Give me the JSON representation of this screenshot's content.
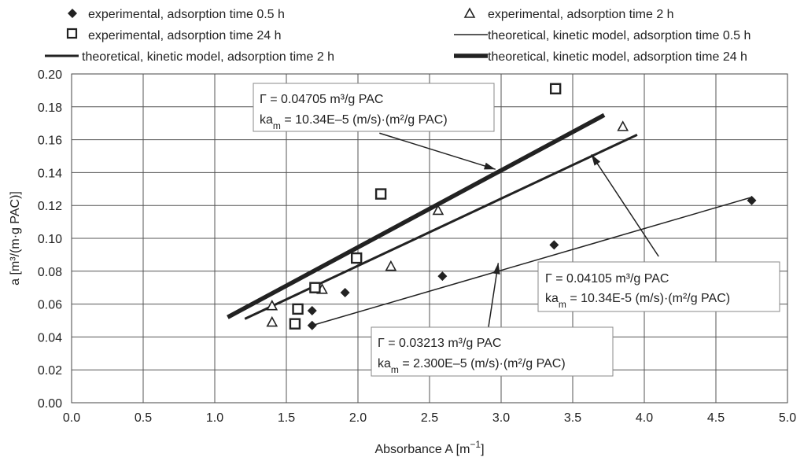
{
  "chart_data": {
    "type": "scatter",
    "xlabel": "Absorbance A [m",
    "xlabel_sup": "−1",
    "xlabel_end": "]",
    "ylabel": "a [m³/(m·g PAC)]",
    "xlim": [
      0.0,
      5.0
    ],
    "ylim": [
      0.0,
      0.2
    ],
    "x_ticks": [
      "0.0",
      "0.5",
      "1.0",
      "1.5",
      "2.0",
      "2.5",
      "3.0",
      "3.5",
      "4.0",
      "4.5",
      "5.0"
    ],
    "y_ticks": [
      "0.00",
      "0.02",
      "0.04",
      "0.06",
      "0.08",
      "0.10",
      "0.12",
      "0.14",
      "0.16",
      "0.18",
      "0.20"
    ],
    "grid": true,
    "legend_position": "top",
    "series": [
      {
        "name": "experimental, adsorption time 0.5 h",
        "kind": "points",
        "marker": "diamond",
        "points": [
          [
            1.68,
            0.047
          ],
          [
            1.68,
            0.056
          ],
          [
            1.91,
            0.067
          ],
          [
            2.59,
            0.077
          ],
          [
            3.37,
            0.096
          ],
          [
            4.75,
            0.123
          ]
        ]
      },
      {
        "name": "experimental,  adsorption time 2 h",
        "kind": "points",
        "marker": "triangle",
        "points": [
          [
            1.4,
            0.049
          ],
          [
            1.4,
            0.059
          ],
          [
            1.75,
            0.069
          ],
          [
            2.23,
            0.083
          ],
          [
            2.56,
            0.117
          ],
          [
            3.85,
            0.168
          ]
        ]
      },
      {
        "name": "experimental,  adsorption time 24 h",
        "kind": "points",
        "marker": "square",
        "points": [
          [
            1.56,
            0.048
          ],
          [
            1.58,
            0.057
          ],
          [
            1.7,
            0.07
          ],
          [
            1.99,
            0.088
          ],
          [
            2.16,
            0.127
          ],
          [
            3.38,
            0.191
          ]
        ]
      },
      {
        "name": "theoretical, kinetic model, adsorption time 0.5 h",
        "kind": "line",
        "stroke": 1.5,
        "points": [
          [
            1.68,
            0.047
          ],
          [
            4.75,
            0.125
          ]
        ]
      },
      {
        "name": "theoretical, kinetic model, adsorption time 2 h",
        "kind": "line",
        "stroke": 3,
        "points": [
          [
            1.21,
            0.051
          ],
          [
            3.95,
            0.163
          ]
        ]
      },
      {
        "name": "theoretical, kinetic model, adsorption time 24 h",
        "kind": "line",
        "stroke": 5.5,
        "points": [
          [
            1.09,
            0.052
          ],
          [
            3.72,
            0.175
          ]
        ]
      }
    ],
    "annotations": [
      {
        "line1": "Γ = 0.04705 m³/g PAC",
        "line2_a": "ka",
        "line2_sub": "m",
        "line2_b": " = 10.34E–5 (m/s)·(m²/g PAC)",
        "arrow_from": [
          2.15,
          0.164
        ],
        "arrow_to": [
          2.96,
          0.142
        ]
      },
      {
        "line1": "Γ = 0.04105 m³/g PAC",
        "line2_a": "ka",
        "line2_sub": "m",
        "line2_b": " = 10.34E-5 (m/s)·(m²/g PAC)",
        "arrow_from": [
          4.1,
          0.089
        ],
        "arrow_to": [
          3.63,
          0.151
        ]
      },
      {
        "line1": "Γ = 0.03213 m³/g PAC",
        "line2_a": "ka",
        "line2_sub": "m",
        "line2_b": " = 2.300E–5 (m/s)·(m²/g PAC)",
        "arrow_from": [
          2.91,
          0.045
        ],
        "arrow_to": [
          2.98,
          0.085
        ]
      }
    ]
  }
}
